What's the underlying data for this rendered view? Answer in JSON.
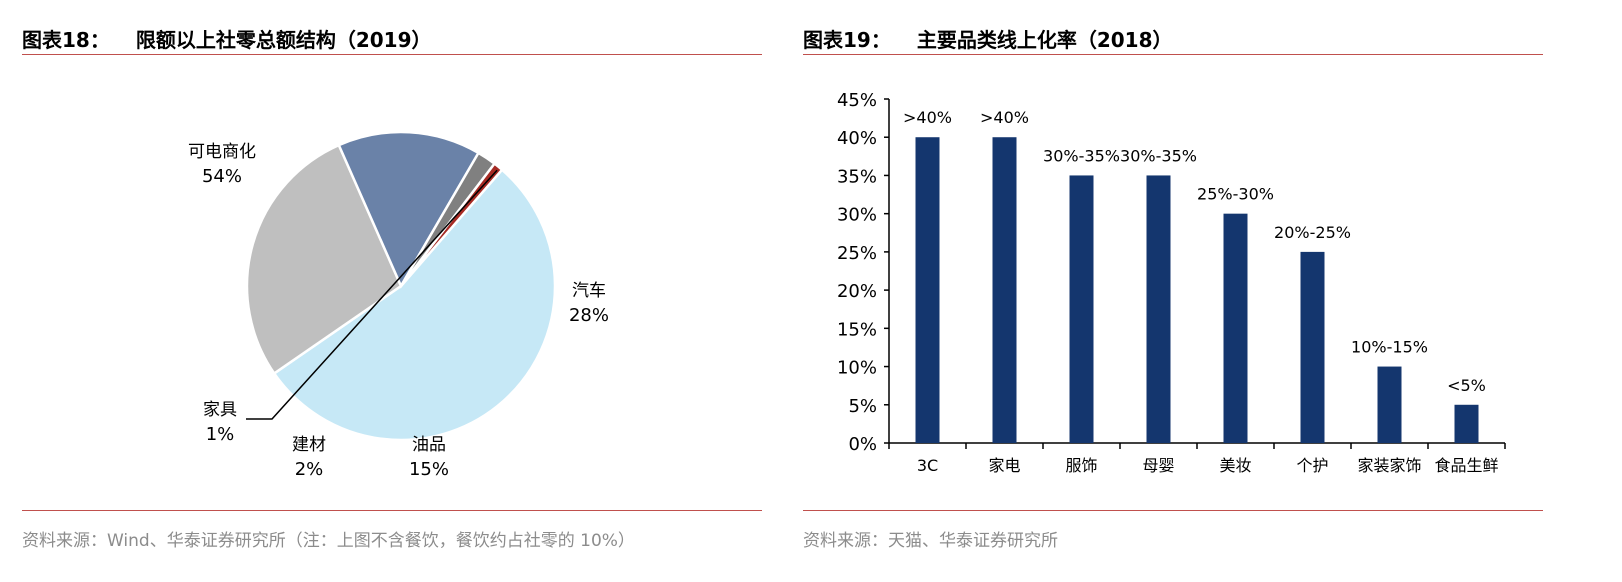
{
  "left": {
    "title_num": "图表18：",
    "title_text": "限额以上社零总额结构（2019）",
    "source": "资料来源：Wind、华泰证券研究所（注：上图不含餐饮，餐饮约占社零的 10%）"
  },
  "right": {
    "title_num": "图表19：",
    "title_text": "主要品类线上化率（2018）",
    "source": "资料来源：天猫、华泰证券研究所"
  },
  "chart_data": [
    {
      "type": "pie",
      "categories": [
        "可电商化",
        "汽车",
        "油品",
        "建材",
        "家具"
      ],
      "values": [
        54,
        28,
        15,
        2,
        1
      ],
      "labels": [
        "54%",
        "28%",
        "15%",
        "2%",
        "1%"
      ],
      "colors": [
        "#c6e8f6",
        "#bfbfbf",
        "#6a82a8",
        "#808080",
        "#a52a24"
      ]
    },
    {
      "type": "bar",
      "categories": [
        "3C",
        "家电",
        "服饰",
        "母婴",
        "美妆",
        "个护",
        "家装家饰",
        "食品生鲜"
      ],
      "values": [
        40,
        40,
        35,
        35,
        30,
        25,
        10,
        5
      ],
      "data_labels": [
        ">40%",
        ">40%",
        "30%-35%",
        "30%-35%",
        "25%-30%",
        "20%-25%",
        "10%-15%",
        "<5%"
      ],
      "y_ticks": [
        "0%",
        "5%",
        "10%",
        "15%",
        "20%",
        "25%",
        "30%",
        "35%",
        "40%",
        "45%"
      ],
      "ylim": [
        0,
        45
      ],
      "bar_color": "#14366e"
    }
  ]
}
